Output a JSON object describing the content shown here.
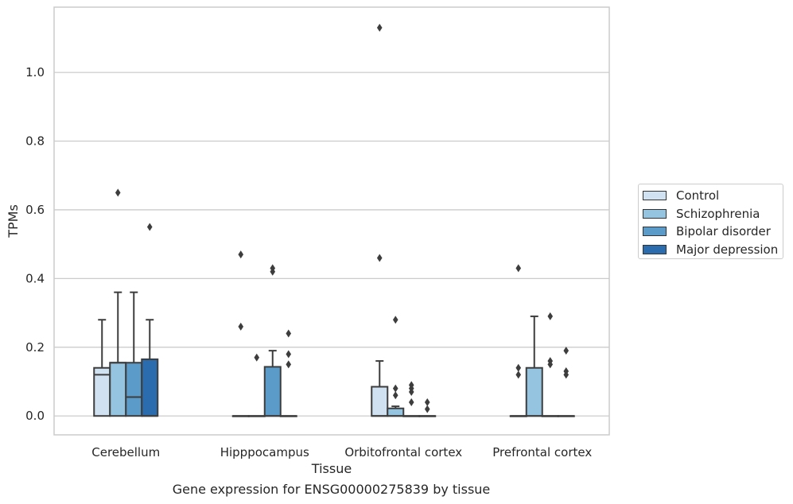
{
  "chart_data": {
    "type": "box",
    "caption": "Gene expression for ENSG00000275839 by tissue",
    "xlabel": "Tissue",
    "ylabel": "TPMs",
    "ylim": [
      -0.055,
      1.19
    ],
    "yticks": [
      "0.0",
      "0.2",
      "0.4",
      "0.6",
      "0.8",
      "1.0"
    ],
    "grid": true,
    "legend_position": "right",
    "categories": [
      "Cerebellum",
      "Hipppocampus",
      "Orbitofrontal cortex",
      "Prefrontal cortex"
    ],
    "series": [
      {
        "name": "Control",
        "color": "#d0e1f2",
        "boxes": [
          {
            "q1": 0.0,
            "median": 0.12,
            "q3": 0.14,
            "whisker_low": 0.0,
            "whisker_high": 0.28,
            "outliers": []
          },
          {
            "q1": 0.0,
            "median": 0.0,
            "q3": 0.0,
            "whisker_low": 0.0,
            "whisker_high": 0.0,
            "outliers": [
              0.47,
              0.26
            ]
          },
          {
            "q1": 0.0,
            "median": 0.0,
            "q3": 0.085,
            "whisker_low": 0.0,
            "whisker_high": 0.16,
            "outliers": [
              1.13,
              0.46
            ]
          },
          {
            "q1": 0.0,
            "median": 0.0,
            "q3": 0.0,
            "whisker_low": 0.0,
            "whisker_high": 0.0,
            "outliers": [
              0.43,
              0.14,
              0.12
            ]
          }
        ]
      },
      {
        "name": "Schizophrenia",
        "color": "#94c4df",
        "boxes": [
          {
            "q1": 0.0,
            "median": 0.155,
            "q3": 0.155,
            "whisker_low": 0.0,
            "whisker_high": 0.36,
            "outliers": [
              0.65
            ]
          },
          {
            "q1": 0.0,
            "median": 0.0,
            "q3": 0.0,
            "whisker_low": 0.0,
            "whisker_high": 0.0,
            "outliers": [
              0.17
            ]
          },
          {
            "q1": 0.0,
            "median": 0.0,
            "q3": 0.022,
            "whisker_low": 0.0,
            "whisker_high": 0.028,
            "outliers": [
              0.28,
              0.08,
              0.06
            ]
          },
          {
            "q1": 0.0,
            "median": 0.0,
            "q3": 0.14,
            "whisker_low": 0.0,
            "whisker_high": 0.29,
            "outliers": []
          }
        ]
      },
      {
        "name": "Bipolar disorder",
        "color": "#5a9bc9",
        "boxes": [
          {
            "q1": 0.0,
            "median": 0.055,
            "q3": 0.155,
            "whisker_low": 0.0,
            "whisker_high": 0.36,
            "outliers": []
          },
          {
            "q1": 0.0,
            "median": 0.0,
            "q3": 0.143,
            "whisker_low": 0.0,
            "whisker_high": 0.19,
            "outliers": [
              0.43,
              0.42
            ]
          },
          {
            "q1": 0.0,
            "median": 0.0,
            "q3": 0.0,
            "whisker_low": 0.0,
            "whisker_high": 0.0,
            "outliers": [
              0.09,
              0.08,
              0.07,
              0.04
            ]
          },
          {
            "q1": 0.0,
            "median": 0.0,
            "q3": 0.0,
            "whisker_low": 0.0,
            "whisker_high": 0.0,
            "outliers": [
              0.29,
              0.16,
              0.15
            ]
          }
        ]
      },
      {
        "name": "Major depression",
        "color": "#2a6cad",
        "boxes": [
          {
            "q1": 0.0,
            "median": 0.0,
            "q3": 0.165,
            "whisker_low": 0.0,
            "whisker_high": 0.28,
            "outliers": [
              0.55
            ]
          },
          {
            "q1": 0.0,
            "median": 0.0,
            "q3": 0.0,
            "whisker_low": 0.0,
            "whisker_high": 0.0,
            "outliers": [
              0.24,
              0.18,
              0.15
            ]
          },
          {
            "q1": 0.0,
            "median": 0.0,
            "q3": 0.0,
            "whisker_low": 0.0,
            "whisker_high": 0.0,
            "outliers": [
              0.04,
              0.02
            ]
          },
          {
            "q1": 0.0,
            "median": 0.0,
            "q3": 0.0,
            "whisker_low": 0.0,
            "whisker_high": 0.0,
            "outliers": [
              0.19,
              0.13,
              0.12
            ]
          }
        ]
      }
    ]
  }
}
